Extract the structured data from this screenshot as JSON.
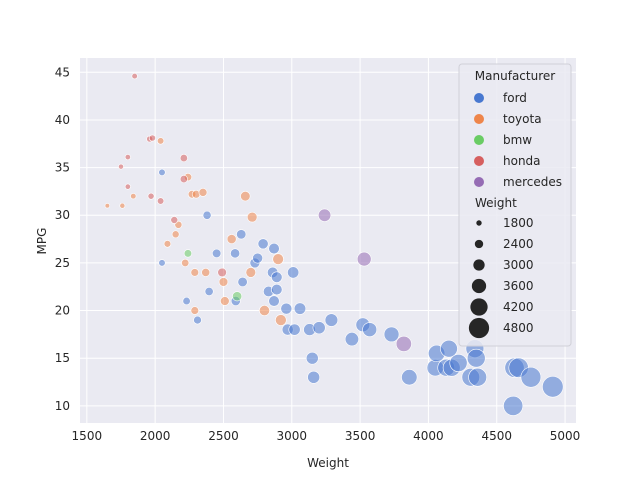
{
  "chart_data": {
    "type": "scatter",
    "title": "",
    "xlabel": "Weight",
    "ylabel": "MPG",
    "xlim": [
      1450,
      5080
    ],
    "ylim": [
      8.2,
      46.5
    ],
    "xticks": [
      1500,
      2000,
      2500,
      3000,
      3500,
      4000,
      4500,
      5000
    ],
    "yticks": [
      10,
      15,
      20,
      25,
      30,
      35,
      40,
      45
    ],
    "grid": true,
    "background": "#eaeaf2",
    "legend": {
      "placement": "top-right",
      "hue_title": "Manufacturer",
      "size_title": "Weight",
      "size_entries": [
        1800,
        2400,
        3000,
        3600,
        4200,
        4800
      ]
    },
    "series": [
      {
        "name": "ford",
        "color": "#4878d0",
        "points": [
          [
            2050,
            34.5
          ],
          [
            2050,
            25
          ],
          [
            2230,
            21
          ],
          [
            2310,
            19
          ],
          [
            2380,
            30
          ],
          [
            2395,
            22
          ],
          [
            2450,
            26
          ],
          [
            2585,
            26
          ],
          [
            2590,
            21
          ],
          [
            2630,
            28
          ],
          [
            2640,
            23
          ],
          [
            2730,
            25
          ],
          [
            2750,
            25.5
          ],
          [
            2790,
            27
          ],
          [
            2830,
            22
          ],
          [
            2860,
            24
          ],
          [
            2870,
            26.5
          ],
          [
            2870,
            21
          ],
          [
            2890,
            23.5
          ],
          [
            2890,
            22.2
          ],
          [
            2960,
            20.2
          ],
          [
            2970,
            18
          ],
          [
            3010,
            24
          ],
          [
            3020,
            18
          ],
          [
            3060,
            20.2
          ],
          [
            3130,
            18
          ],
          [
            3150,
            15
          ],
          [
            3160,
            13
          ],
          [
            3200,
            18.2
          ],
          [
            3290,
            19
          ],
          [
            3440,
            17
          ],
          [
            3520,
            18.5
          ],
          [
            3570,
            18
          ],
          [
            3730,
            17.5
          ],
          [
            3860,
            13
          ],
          [
            4050,
            14
          ],
          [
            4060,
            15.5
          ],
          [
            4130,
            14
          ],
          [
            4150,
            16
          ],
          [
            4170,
            14
          ],
          [
            4220,
            14.5
          ],
          [
            4310,
            13
          ],
          [
            4340,
            16
          ],
          [
            4350,
            15
          ],
          [
            4360,
            13
          ],
          [
            4620,
            10
          ],
          [
            4630,
            14
          ],
          [
            4660,
            14
          ],
          [
            4750,
            13
          ],
          [
            4910,
            12
          ]
        ]
      },
      {
        "name": "toyota",
        "color": "#ee854a",
        "points": [
          [
            1650,
            31
          ],
          [
            1760,
            31
          ],
          [
            1840,
            32
          ],
          [
            2040,
            37.8
          ],
          [
            2090,
            27
          ],
          [
            2150,
            28
          ],
          [
            2170,
            29
          ],
          [
            2220,
            25
          ],
          [
            2240,
            34
          ],
          [
            2270,
            32.2
          ],
          [
            2290,
            24
          ],
          [
            2290,
            20
          ],
          [
            2300,
            32.2
          ],
          [
            2350,
            32.4
          ],
          [
            2370,
            24
          ],
          [
            2500,
            23
          ],
          [
            2510,
            21
          ],
          [
            2560,
            27.5
          ],
          [
            2660,
            32
          ],
          [
            2700,
            24
          ],
          [
            2710,
            29.8
          ],
          [
            2800,
            20
          ],
          [
            2900,
            25.4
          ],
          [
            2920,
            19
          ]
        ]
      },
      {
        "name": "bmw",
        "color": "#6acc64",
        "points": [
          [
            2240,
            26
          ],
          [
            2600,
            21.5
          ]
        ]
      },
      {
        "name": "honda",
        "color": "#d65f5f",
        "points": [
          [
            1750,
            35.1
          ],
          [
            1800,
            36.1
          ],
          [
            1800,
            33
          ],
          [
            1850,
            44.6
          ],
          [
            1960,
            38
          ],
          [
            1970,
            32
          ],
          [
            1980,
            38.1
          ],
          [
            2040,
            31.5
          ],
          [
            2140,
            29.5
          ],
          [
            2210,
            36
          ],
          [
            2210,
            33.8
          ],
          [
            2490,
            24
          ]
        ]
      },
      {
        "name": "mercedes",
        "color": "#956cb4",
        "points": [
          [
            3240,
            30
          ],
          [
            3530,
            25.4
          ],
          [
            3820,
            16.5
          ]
        ]
      }
    ]
  }
}
